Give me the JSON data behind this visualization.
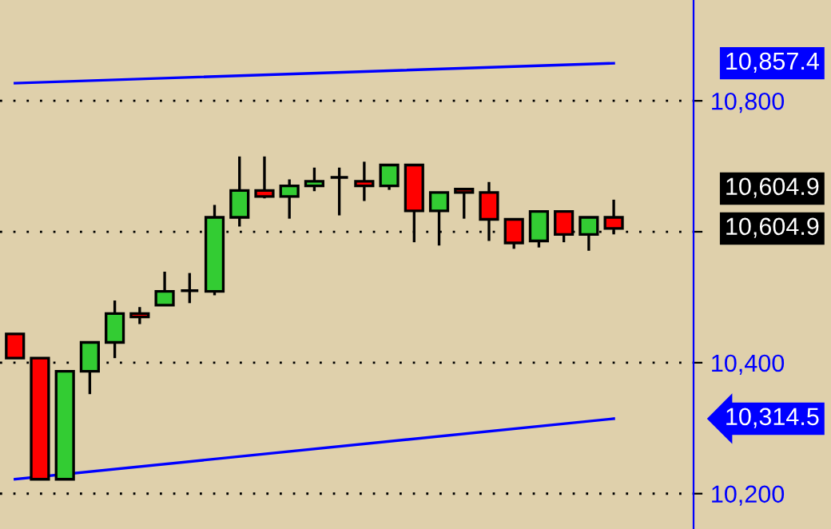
{
  "chart_data": {
    "type": "candlestick",
    "categories": [
      null,
      null,
      null,
      null,
      null,
      null,
      null,
      null,
      null,
      null,
      null,
      null,
      null,
      null,
      null,
      null,
      null,
      null,
      null,
      null,
      null,
      null,
      null,
      null,
      null
    ],
    "ohlc": [
      [
        10444,
        10444,
        10407,
        10407
      ],
      [
        10407,
        10408,
        10222,
        10222
      ],
      [
        10222,
        10387,
        10222,
        10387
      ],
      [
        10387,
        10431,
        10352,
        10431
      ],
      [
        10431,
        10495,
        10407,
        10475
      ],
      [
        10475,
        10485,
        10459,
        10470
      ],
      [
        10488,
        10539,
        10488,
        10509
      ],
      [
        10510,
        10537,
        10491,
        10510
      ],
      [
        10509,
        10641,
        10503,
        10622
      ],
      [
        10622,
        10715,
        10608,
        10663
      ],
      [
        10663,
        10715,
        10651,
        10654
      ],
      [
        10654,
        10680,
        10620,
        10670
      ],
      [
        10670,
        10698,
        10662,
        10677
      ],
      [
        10683,
        10698,
        10625,
        10683
      ],
      [
        10677,
        10707,
        10647,
        10670
      ],
      [
        10670,
        10702,
        10664,
        10702
      ],
      [
        10702,
        10702,
        10584,
        10632
      ],
      [
        10632,
        10660,
        10579,
        10660
      ],
      [
        10665,
        10665,
        10620,
        10660
      ],
      [
        10660,
        10676,
        10586,
        10619
      ],
      [
        10619,
        10619,
        10574,
        10583
      ],
      [
        10586,
        10631,
        10576,
        10631
      ],
      [
        10631,
        10631,
        10584,
        10596
      ],
      [
        10596,
        10622,
        10571,
        10622
      ],
      [
        10622,
        10649,
        10596,
        10605
      ]
    ],
    "colors": [
      "#ff0000",
      "#ff0000",
      "#33cc33",
      "#33cc33",
      "#33cc33",
      "#ff0000",
      "#33cc33",
      "#000000",
      "#33cc33",
      "#33cc33",
      "#ff0000",
      "#33cc33",
      "#33cc33",
      "#000000",
      "#ff0000",
      "#33cc33",
      "#ff0000",
      "#33cc33",
      "#ff0000",
      "#ff0000",
      "#ff0000",
      "#33cc33",
      "#ff0000",
      "#33cc33",
      "#ff0000"
    ],
    "series": [
      {
        "type": "line",
        "values": [
          10827,
          null,
          null,
          null,
          null,
          null,
          null,
          null,
          null,
          null,
          null,
          null,
          null,
          null,
          null,
          null,
          null,
          null,
          null,
          null,
          null,
          null,
          null,
          null,
          10857.4
        ],
        "color": "#0000ff"
      },
      {
        "type": "line",
        "values": [
          10222,
          null,
          null,
          null,
          null,
          null,
          null,
          null,
          null,
          null,
          null,
          null,
          null,
          null,
          null,
          null,
          null,
          null,
          null,
          null,
          null,
          null,
          null,
          null,
          10314.5
        ],
        "color": "#0000ff"
      }
    ],
    "ylim": [
      10146,
      10954
    ],
    "yticks": [
      {
        "value": 10200,
        "label": "10,200"
      },
      {
        "value": 10400,
        "label": "10,400"
      },
      {
        "value": 10600,
        "label": null
      },
      {
        "value": 10800,
        "label": "10,800"
      }
    ],
    "grid": "y",
    "tick_labels": "y",
    "annotations": [
      "10,857.4",
      "10,604.9",
      "10,604.9",
      "10,314.5"
    ]
  }
}
